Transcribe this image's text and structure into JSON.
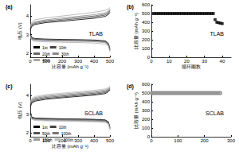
{
  "chart_data": [
    {
      "type": "line",
      "title": "(a)",
      "annotation": "TLAB",
      "x_label": "比容量 (mAh g⁻¹)",
      "y_label": "电压 (V)",
      "xlim": [
        0,
        500
      ],
      "xticks": [
        0,
        100,
        200,
        300,
        400,
        500
      ],
      "ylim": [
        1.8,
        4.6
      ],
      "yticks": [
        2,
        3,
        4
      ],
      "grid": false,
      "legend": "lower left",
      "x": [
        0,
        10,
        30,
        100,
        200,
        300,
        400,
        470,
        490,
        500,
        500,
        0,
        10,
        30,
        100,
        200,
        300,
        400,
        470,
        490,
        500
      ],
      "series": [
        {
          "name": "1st",
          "color": "#000000",
          "values": [
            3.05,
            2.85,
            2.8,
            2.77,
            2.75,
            2.74,
            2.72,
            2.68,
            2.55,
            2.25,
            null,
            3.25,
            3.45,
            3.55,
            3.65,
            3.72,
            3.8,
            3.88,
            3.98,
            4.08,
            4.2
          ]
        },
        {
          "name": "10th",
          "color": "#444444",
          "values": [
            3.0,
            2.8,
            2.76,
            2.74,
            2.72,
            2.71,
            2.69,
            2.64,
            2.5,
            2.2,
            null,
            3.3,
            3.5,
            3.6,
            3.7,
            3.78,
            3.86,
            3.95,
            4.05,
            4.15,
            4.28
          ]
        },
        {
          "name": "20th",
          "color": "#666666",
          "values": [
            2.98,
            2.78,
            2.74,
            2.72,
            2.7,
            2.69,
            2.67,
            2.62,
            2.48,
            2.18,
            null,
            3.35,
            3.55,
            3.65,
            3.75,
            3.83,
            3.92,
            4.0,
            4.1,
            4.2,
            4.32
          ]
        },
        {
          "name": "30th",
          "color": "#888888",
          "values": [
            2.95,
            2.75,
            2.7,
            2.68,
            2.66,
            2.65,
            2.63,
            2.58,
            2.45,
            2.15,
            null,
            3.4,
            3.6,
            3.7,
            3.8,
            3.9,
            3.98,
            4.07,
            4.17,
            4.27,
            4.38
          ]
        },
        {
          "name": "40th",
          "color": "#aaaaaa",
          "values": [
            2.9,
            2.7,
            2.65,
            2.62,
            2.6,
            2.58,
            2.56,
            2.5,
            2.4,
            2.1,
            null,
            3.45,
            3.68,
            3.8,
            3.9,
            4.0,
            4.1,
            4.2,
            4.3,
            4.38,
            4.45
          ]
        }
      ]
    },
    {
      "type": "scatter",
      "title": "(b)",
      "annotation": "TLAB",
      "x_label": "循环圈数",
      "y_label": "比容量 (mAh g⁻¹)",
      "xlim": [
        0,
        45
      ],
      "xticks": [
        0,
        10,
        20,
        30,
        40
      ],
      "ylim": [
        0,
        600
      ],
      "yticks": [
        0,
        100,
        200,
        300,
        400,
        500,
        600
      ],
      "grid": false,
      "marker": "square",
      "color": "#000000",
      "x": [
        1,
        2,
        3,
        4,
        5,
        6,
        7,
        8,
        9,
        10,
        11,
        12,
        13,
        14,
        15,
        16,
        17,
        18,
        19,
        20,
        21,
        22,
        23,
        24,
        25,
        26,
        27,
        28,
        29,
        30,
        31,
        32,
        33,
        34,
        35,
        36,
        37,
        38,
        39,
        40
      ],
      "values": [
        500,
        500,
        500,
        500,
        500,
        500,
        500,
        500,
        500,
        500,
        500,
        500,
        500,
        500,
        500,
        500,
        500,
        500,
        500,
        500,
        500,
        500,
        500,
        500,
        500,
        500,
        500,
        500,
        500,
        500,
        500,
        500,
        500,
        500,
        500,
        430,
        400,
        395,
        390,
        385
      ]
    },
    {
      "type": "line",
      "title": "(c)",
      "annotation": "SCLAB",
      "x_label": "比容量 (mAh g⁻¹)",
      "y_label": "电压 (V)",
      "xlim": [
        0,
        500
      ],
      "xticks": [
        0,
        100,
        200,
        300,
        400,
        500
      ],
      "ylim": [
        1.8,
        4.6
      ],
      "yticks": [
        2,
        3,
        4
      ],
      "grid": false,
      "legend": "lower left",
      "x": [
        0,
        10,
        30,
        100,
        200,
        300,
        400,
        470,
        490,
        500,
        500,
        0,
        10,
        30,
        100,
        200,
        300,
        400,
        470,
        490,
        500
      ],
      "series": [
        {
          "name": "1st",
          "color": "#000000",
          "values": [
            3.05,
            2.85,
            2.8,
            2.78,
            2.76,
            2.75,
            2.73,
            2.7,
            2.6,
            2.3,
            null,
            3.4,
            3.6,
            3.7,
            3.8,
            3.88,
            3.95,
            4.02,
            4.1,
            4.2,
            4.3
          ]
        },
        {
          "name": "10th",
          "color": "#333333",
          "values": [
            3.0,
            2.82,
            2.78,
            2.76,
            2.74,
            2.73,
            2.71,
            2.68,
            2.58,
            2.28,
            null,
            3.45,
            3.65,
            3.75,
            3.85,
            3.92,
            4.0,
            4.07,
            4.15,
            4.24,
            4.34
          ]
        },
        {
          "name": "50th",
          "color": "#555555",
          "values": [
            2.98,
            2.8,
            2.76,
            2.73,
            2.71,
            2.7,
            2.68,
            2.65,
            2.55,
            2.25,
            null,
            3.5,
            3.7,
            3.8,
            3.9,
            3.97,
            4.05,
            4.12,
            4.2,
            4.28,
            4.38
          ]
        },
        {
          "name": "100th",
          "color": "#777777",
          "values": [
            2.95,
            2.77,
            2.73,
            2.7,
            2.68,
            2.67,
            2.65,
            2.62,
            2.52,
            2.22,
            null,
            3.55,
            3.75,
            3.85,
            3.95,
            4.02,
            4.1,
            4.17,
            4.25,
            4.33,
            4.42
          ]
        },
        {
          "name": "150th",
          "color": "#999999",
          "values": [
            2.93,
            2.75,
            2.7,
            2.67,
            2.65,
            2.64,
            2.62,
            2.59,
            2.5,
            2.2,
            null,
            3.6,
            3.8,
            3.9,
            4.0,
            4.08,
            4.15,
            4.22,
            4.3,
            4.38,
            4.46
          ]
        },
        {
          "name": "200th",
          "color": "#bbbbbb",
          "values": [
            2.9,
            2.72,
            2.67,
            2.64,
            2.62,
            2.61,
            2.59,
            2.56,
            2.48,
            2.18,
            null,
            3.65,
            3.85,
            3.95,
            4.05,
            4.13,
            4.2,
            4.28,
            4.35,
            4.42,
            4.5
          ]
        }
      ]
    },
    {
      "type": "scatter",
      "title": "(d)",
      "annotation": "SCLAB",
      "y_label": "比容量 (mAh g⁻¹)",
      "xlim": [
        0,
        300
      ],
      "xticks": [
        0,
        100,
        200,
        300
      ],
      "ylim": [
        0,
        600
      ],
      "yticks": [
        0,
        100,
        200,
        300,
        400,
        500,
        600
      ],
      "grid": false,
      "marker": "open_circle",
      "color": "#888888",
      "x": [
        1,
        5,
        10,
        15,
        20,
        25,
        30,
        35,
        40,
        45,
        50,
        55,
        60,
        65,
        70,
        75,
        80,
        85,
        90,
        95,
        100,
        105,
        110,
        115,
        120,
        125,
        130,
        135,
        140,
        145,
        150,
        155,
        160,
        165,
        170,
        175,
        180,
        185,
        190,
        195,
        200,
        205,
        210,
        215,
        220,
        225,
        230,
        235,
        240,
        245,
        250,
        255,
        260
      ],
      "values": [
        500,
        500,
        500,
        500,
        500,
        500,
        500,
        500,
        500,
        500,
        500,
        500,
        500,
        500,
        500,
        500,
        500,
        500,
        500,
        500,
        500,
        500,
        500,
        500,
        500,
        500,
        500,
        500,
        500,
        500,
        500,
        500,
        500,
        500,
        500,
        500,
        500,
        500,
        500,
        500,
        500,
        500,
        500,
        500,
        500,
        500,
        500,
        500,
        500,
        500,
        500,
        500,
        500
      ]
    }
  ]
}
